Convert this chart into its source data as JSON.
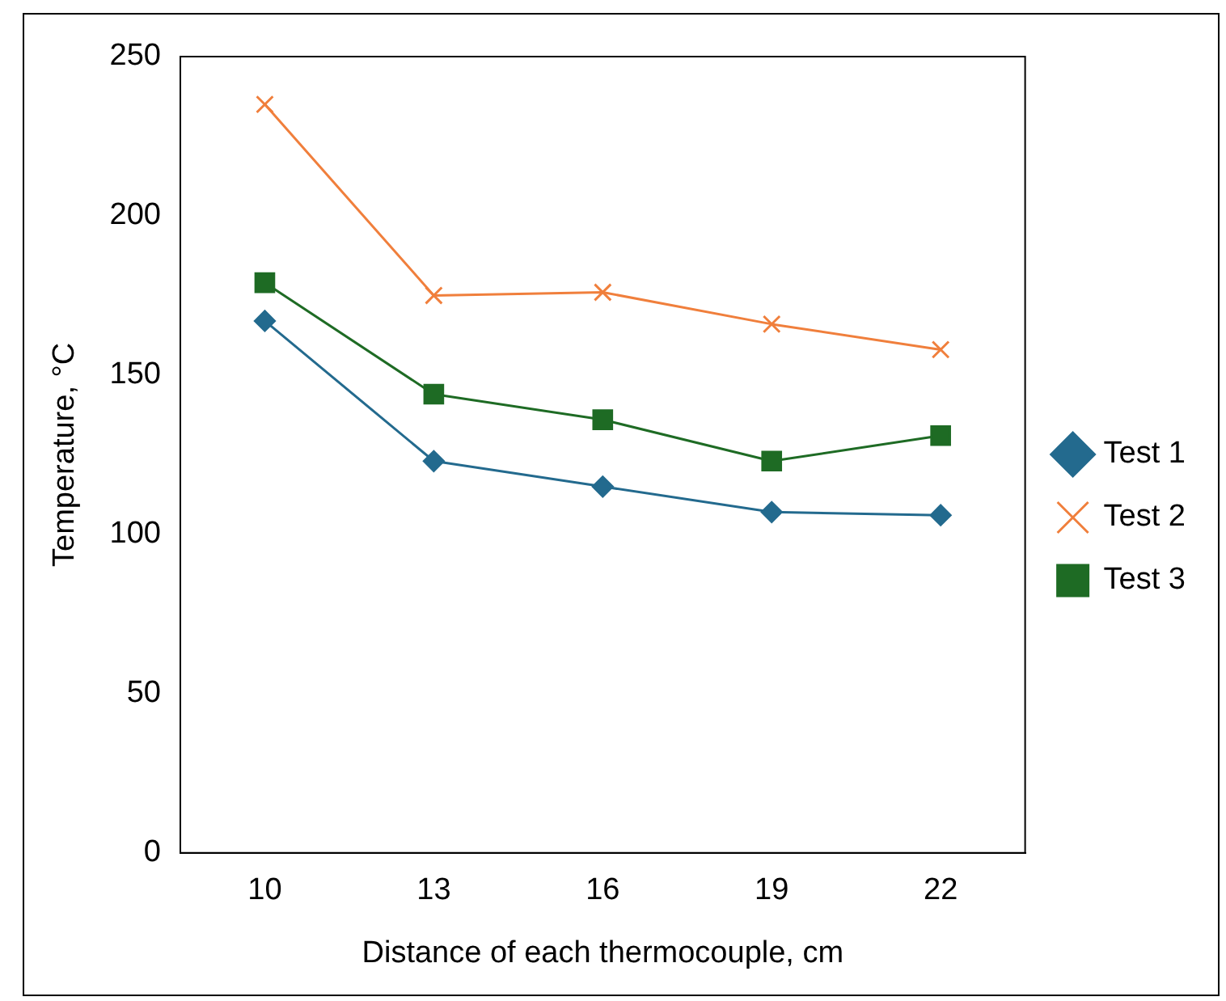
{
  "chart_data": {
    "type": "line",
    "xlabel": "Distance of each thermocouple, cm",
    "ylabel": "Temperature, °C",
    "categories": [
      "10",
      "13",
      "16",
      "19",
      "22"
    ],
    "ylim": [
      0,
      250
    ],
    "yticks": [
      0,
      50,
      100,
      150,
      200,
      250
    ],
    "grid": false,
    "legend": "right",
    "line_style": "solid",
    "series": [
      {
        "name": "Test 1",
        "color": "#236a8e",
        "marker": "diamond",
        "values": [
          167,
          123,
          115,
          107,
          106
        ]
      },
      {
        "name": "Test 2",
        "color": "#f07f3c",
        "marker": "cross",
        "values": [
          235,
          175,
          176,
          166,
          158
        ]
      },
      {
        "name": "Test 3",
        "color": "#1e6b24",
        "marker": "square",
        "values": [
          179,
          144,
          136,
          123,
          131
        ]
      }
    ]
  }
}
